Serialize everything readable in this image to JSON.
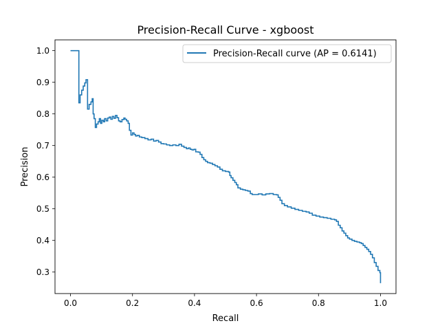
{
  "chart_data": {
    "type": "line",
    "title": "Precision-Recall Curve - xgboost",
    "xlabel": "Recall",
    "ylabel": "Precision",
    "xlim": [
      -0.05,
      1.05
    ],
    "ylim": [
      0.232,
      1.034
    ],
    "xticks": [
      0.0,
      0.2,
      0.4,
      0.6,
      0.8,
      1.0
    ],
    "xtick_labels": [
      "0.0",
      "0.2",
      "0.4",
      "0.6",
      "0.8",
      "1.0"
    ],
    "yticks": [
      0.3,
      0.4,
      0.5,
      0.6,
      0.7,
      0.8,
      0.9,
      1.0
    ],
    "ytick_labels": [
      "0.3",
      "0.4",
      "0.5",
      "0.6",
      "0.7",
      "0.8",
      "0.9",
      "1.0"
    ],
    "grid": false,
    "legend_position": "top-right",
    "series": [
      {
        "name": "Precision-Recall curve (AP = 0.6141)",
        "color": "#1f77b4",
        "step": "post",
        "points": [
          [
            0.0,
            1.0
          ],
          [
            0.027,
            1.0
          ],
          [
            0.027,
            0.835
          ],
          [
            0.031,
            0.86
          ],
          [
            0.036,
            0.875
          ],
          [
            0.041,
            0.888
          ],
          [
            0.046,
            0.898
          ],
          [
            0.05,
            0.908
          ],
          [
            0.055,
            0.815
          ],
          [
            0.06,
            0.83
          ],
          [
            0.066,
            0.838
          ],
          [
            0.07,
            0.848
          ],
          [
            0.073,
            0.8
          ],
          [
            0.076,
            0.785
          ],
          [
            0.08,
            0.757
          ],
          [
            0.084,
            0.768
          ],
          [
            0.089,
            0.775
          ],
          [
            0.093,
            0.785
          ],
          [
            0.097,
            0.77
          ],
          [
            0.101,
            0.78
          ],
          [
            0.106,
            0.775
          ],
          [
            0.11,
            0.785
          ],
          [
            0.115,
            0.778
          ],
          [
            0.12,
            0.787
          ],
          [
            0.125,
            0.79
          ],
          [
            0.13,
            0.783
          ],
          [
            0.135,
            0.792
          ],
          [
            0.14,
            0.786
          ],
          [
            0.145,
            0.795
          ],
          [
            0.15,
            0.788
          ],
          [
            0.155,
            0.778
          ],
          [
            0.16,
            0.775
          ],
          [
            0.166,
            0.782
          ],
          [
            0.172,
            0.787
          ],
          [
            0.176,
            0.783
          ],
          [
            0.181,
            0.778
          ],
          [
            0.186,
            0.77
          ],
          [
            0.19,
            0.748
          ],
          [
            0.195,
            0.733
          ],
          [
            0.2,
            0.74
          ],
          [
            0.205,
            0.735
          ],
          [
            0.21,
            0.73
          ],
          [
            0.215,
            0.732
          ],
          [
            0.222,
            0.727
          ],
          [
            0.23,
            0.725
          ],
          [
            0.24,
            0.722
          ],
          [
            0.25,
            0.718
          ],
          [
            0.26,
            0.72
          ],
          [
            0.268,
            0.714
          ],
          [
            0.276,
            0.716
          ],
          [
            0.284,
            0.711
          ],
          [
            0.292,
            0.706
          ],
          [
            0.3,
            0.705
          ],
          [
            0.31,
            0.702
          ],
          [
            0.32,
            0.7
          ],
          [
            0.33,
            0.702
          ],
          [
            0.34,
            0.7
          ],
          [
            0.35,
            0.704
          ],
          [
            0.358,
            0.698
          ],
          [
            0.366,
            0.694
          ],
          [
            0.374,
            0.69
          ],
          [
            0.38,
            0.692
          ],
          [
            0.386,
            0.688
          ],
          [
            0.392,
            0.686
          ],
          [
            0.398,
            0.688
          ],
          [
            0.404,
            0.68
          ],
          [
            0.412,
            0.679
          ],
          [
            0.418,
            0.672
          ],
          [
            0.424,
            0.662
          ],
          [
            0.43,
            0.655
          ],
          [
            0.436,
            0.65
          ],
          [
            0.442,
            0.646
          ],
          [
            0.45,
            0.644
          ],
          [
            0.458,
            0.64
          ],
          [
            0.466,
            0.636
          ],
          [
            0.474,
            0.632
          ],
          [
            0.482,
            0.625
          ],
          [
            0.49,
            0.62
          ],
          [
            0.5,
            0.618
          ],
          [
            0.51,
            0.616
          ],
          [
            0.514,
            0.605
          ],
          [
            0.518,
            0.598
          ],
          [
            0.524,
            0.59
          ],
          [
            0.53,
            0.583
          ],
          [
            0.535,
            0.576
          ],
          [
            0.54,
            0.566
          ],
          [
            0.548,
            0.562
          ],
          [
            0.556,
            0.56
          ],
          [
            0.564,
            0.558
          ],
          [
            0.572,
            0.556
          ],
          [
            0.58,
            0.548
          ],
          [
            0.586,
            0.545
          ],
          [
            0.594,
            0.545
          ],
          [
            0.606,
            0.547
          ],
          [
            0.618,
            0.544
          ],
          [
            0.63,
            0.547
          ],
          [
            0.642,
            0.548
          ],
          [
            0.654,
            0.545
          ],
          [
            0.665,
            0.544
          ],
          [
            0.67,
            0.536
          ],
          [
            0.676,
            0.527
          ],
          [
            0.682,
            0.516
          ],
          [
            0.69,
            0.51
          ],
          [
            0.7,
            0.506
          ],
          [
            0.712,
            0.502
          ],
          [
            0.724,
            0.498
          ],
          [
            0.736,
            0.495
          ],
          [
            0.748,
            0.492
          ],
          [
            0.76,
            0.49
          ],
          [
            0.77,
            0.486
          ],
          [
            0.78,
            0.48
          ],
          [
            0.792,
            0.477
          ],
          [
            0.804,
            0.474
          ],
          [
            0.816,
            0.472
          ],
          [
            0.828,
            0.47
          ],
          [
            0.84,
            0.467
          ],
          [
            0.852,
            0.465
          ],
          [
            0.858,
            0.46
          ],
          [
            0.864,
            0.448
          ],
          [
            0.87,
            0.44
          ],
          [
            0.876,
            0.43
          ],
          [
            0.882,
            0.423
          ],
          [
            0.888,
            0.415
          ],
          [
            0.894,
            0.408
          ],
          [
            0.9,
            0.404
          ],
          [
            0.908,
            0.4
          ],
          [
            0.916,
            0.397
          ],
          [
            0.924,
            0.395
          ],
          [
            0.932,
            0.393
          ],
          [
            0.938,
            0.39
          ],
          [
            0.944,
            0.384
          ],
          [
            0.95,
            0.378
          ],
          [
            0.956,
            0.372
          ],
          [
            0.962,
            0.365
          ],
          [
            0.968,
            0.356
          ],
          [
            0.974,
            0.345
          ],
          [
            0.98,
            0.33
          ],
          [
            0.986,
            0.318
          ],
          [
            0.992,
            0.305
          ],
          [
            0.998,
            0.298
          ],
          [
            1.0,
            0.294
          ],
          [
            1.0,
            0.265
          ]
        ]
      }
    ]
  }
}
